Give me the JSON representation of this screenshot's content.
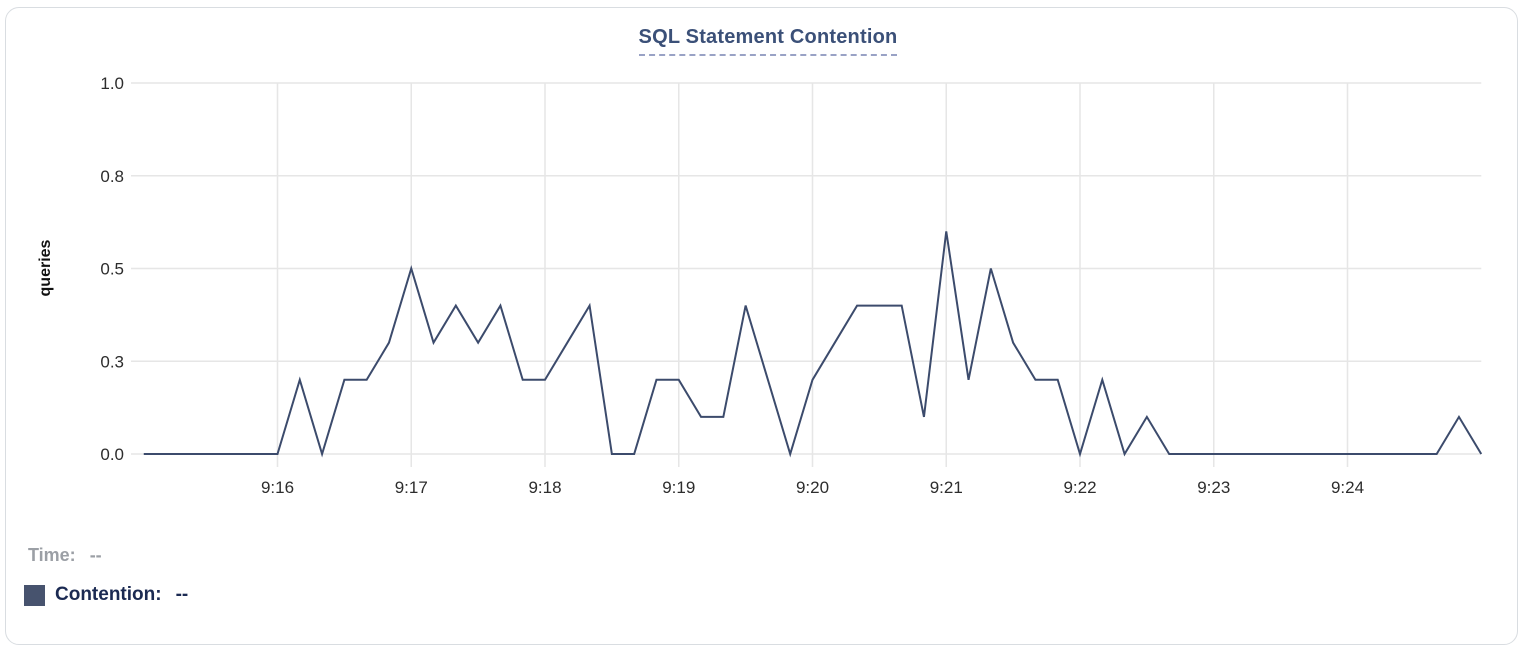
{
  "title": "SQL Statement Contention",
  "chart_data": {
    "type": "line",
    "title": "SQL Statement Contention",
    "xlabel": "",
    "ylabel": "queries",
    "ylim": [
      0,
      1.0
    ],
    "grid": true,
    "legend_position": "bottom-left",
    "y_ticks": [
      {
        "value": 0.0,
        "label": "0.0"
      },
      {
        "value": 0.25,
        "label": "0.3"
      },
      {
        "value": 0.5,
        "label": "0.5"
      },
      {
        "value": 0.75,
        "label": "0.8"
      },
      {
        "value": 1.0,
        "label": "1.0"
      }
    ],
    "x_tick_labels": [
      "9:16",
      "9:17",
      "9:18",
      "9:19",
      "9:20",
      "9:21",
      "9:22",
      "9:23",
      "9:24"
    ],
    "x_range": [
      "9:15:00",
      "9:25:00"
    ],
    "sample_interval_seconds": 10,
    "series": [
      {
        "name": "Contention",
        "color": "#3c4b6c",
        "times": [
          "9:15:00",
          "9:15:10",
          "9:15:20",
          "9:15:30",
          "9:15:40",
          "9:15:50",
          "9:16:00",
          "9:16:10",
          "9:16:20",
          "9:16:30",
          "9:16:40",
          "9:16:50",
          "9:17:00",
          "9:17:10",
          "9:17:20",
          "9:17:30",
          "9:17:40",
          "9:17:50",
          "9:18:00",
          "9:18:10",
          "9:18:20",
          "9:18:30",
          "9:18:40",
          "9:18:50",
          "9:19:00",
          "9:19:10",
          "9:19:20",
          "9:19:30",
          "9:19:40",
          "9:19:50",
          "9:20:00",
          "9:20:10",
          "9:20:20",
          "9:20:30",
          "9:20:40",
          "9:20:50",
          "9:21:00",
          "9:21:10",
          "9:21:20",
          "9:21:30",
          "9:21:40",
          "9:21:50",
          "9:22:00",
          "9:22:10",
          "9:22:20",
          "9:22:30",
          "9:22:40",
          "9:22:50",
          "9:23:00",
          "9:23:10",
          "9:23:20",
          "9:23:30",
          "9:23:40",
          "9:23:50",
          "9:24:00",
          "9:24:10",
          "9:24:20",
          "9:24:30",
          "9:24:40",
          "9:24:50",
          "9:25:00"
        ],
        "values": [
          0,
          0,
          0,
          0,
          0,
          0,
          0,
          0.2,
          0,
          0.2,
          0.2,
          0.3,
          0.5,
          0.3,
          0.4,
          0.3,
          0.4,
          0.2,
          0.2,
          0.3,
          0.4,
          0,
          0,
          0.2,
          0.2,
          0.1,
          0.1,
          0.4,
          0.2,
          0,
          0.2,
          0.3,
          0.4,
          0.4,
          0.4,
          0.1,
          0.6,
          0.2,
          0.5,
          0.3,
          0.2,
          0.2,
          0,
          0.2,
          0,
          0.1,
          0,
          0,
          0,
          0,
          0,
          0,
          0,
          0,
          0,
          0,
          0,
          0,
          0,
          0.1,
          0
        ]
      }
    ]
  },
  "readout": {
    "time_label": "Time:",
    "time_value": "--",
    "series_label": "Contention:",
    "series_value": "--"
  },
  "colors": {
    "series_line": "#3c4b6c",
    "grid_line": "#e6e6e6",
    "title_text": "#3b5078",
    "title_underline": "#99a2c5",
    "tick_text": "#2d2d2d",
    "time_text": "#9b9fa5",
    "contention_text": "#1b2a52",
    "legend_swatch": "#47536e",
    "card_border": "#d9dde1"
  }
}
